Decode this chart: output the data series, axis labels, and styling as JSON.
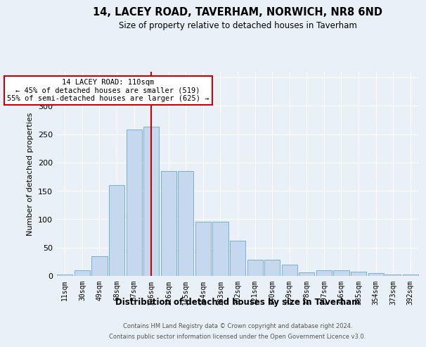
{
  "title1": "14, LACEY ROAD, TAVERHAM, NORWICH, NR8 6ND",
  "title2": "Size of property relative to detached houses in Taverham",
  "xlabel": "Distribution of detached houses by size in Taverham",
  "ylabel": "Number of detached properties",
  "categories": [
    "11sqm",
    "30sqm",
    "49sqm",
    "68sqm",
    "87sqm",
    "106sqm",
    "126sqm",
    "145sqm",
    "164sqm",
    "183sqm",
    "202sqm",
    "221sqm",
    "240sqm",
    "259sqm",
    "278sqm",
    "297sqm",
    "316sqm",
    "335sqm",
    "354sqm",
    "373sqm",
    "392sqm"
  ],
  "values": [
    2,
    10,
    35,
    160,
    258,
    263,
    185,
    185,
    95,
    95,
    62,
    28,
    28,
    20,
    6,
    10,
    10,
    7,
    5,
    2,
    2
  ],
  "bar_color": "#c5d8ed",
  "bar_edge_color": "#7aafd4",
  "vline_x_index": 5,
  "vline_color": "#cc0000",
  "annotation_text": "14 LACEY ROAD: 110sqm\n← 45% of detached houses are smaller (519)\n55% of semi-detached houses are larger (625) →",
  "annotation_box_color": "#ffffff",
  "annotation_box_edge": "#cc0000",
  "footer1": "Contains HM Land Registry data © Crown copyright and database right 2024.",
  "footer2": "Contains public sector information licensed under the Open Government Licence v3.0.",
  "bg_color": "#eaf0f8",
  "plot_bg_color": "#eaf0f8",
  "ylim": [
    0,
    360
  ],
  "yticks": [
    0,
    50,
    100,
    150,
    200,
    250,
    300,
    350
  ]
}
